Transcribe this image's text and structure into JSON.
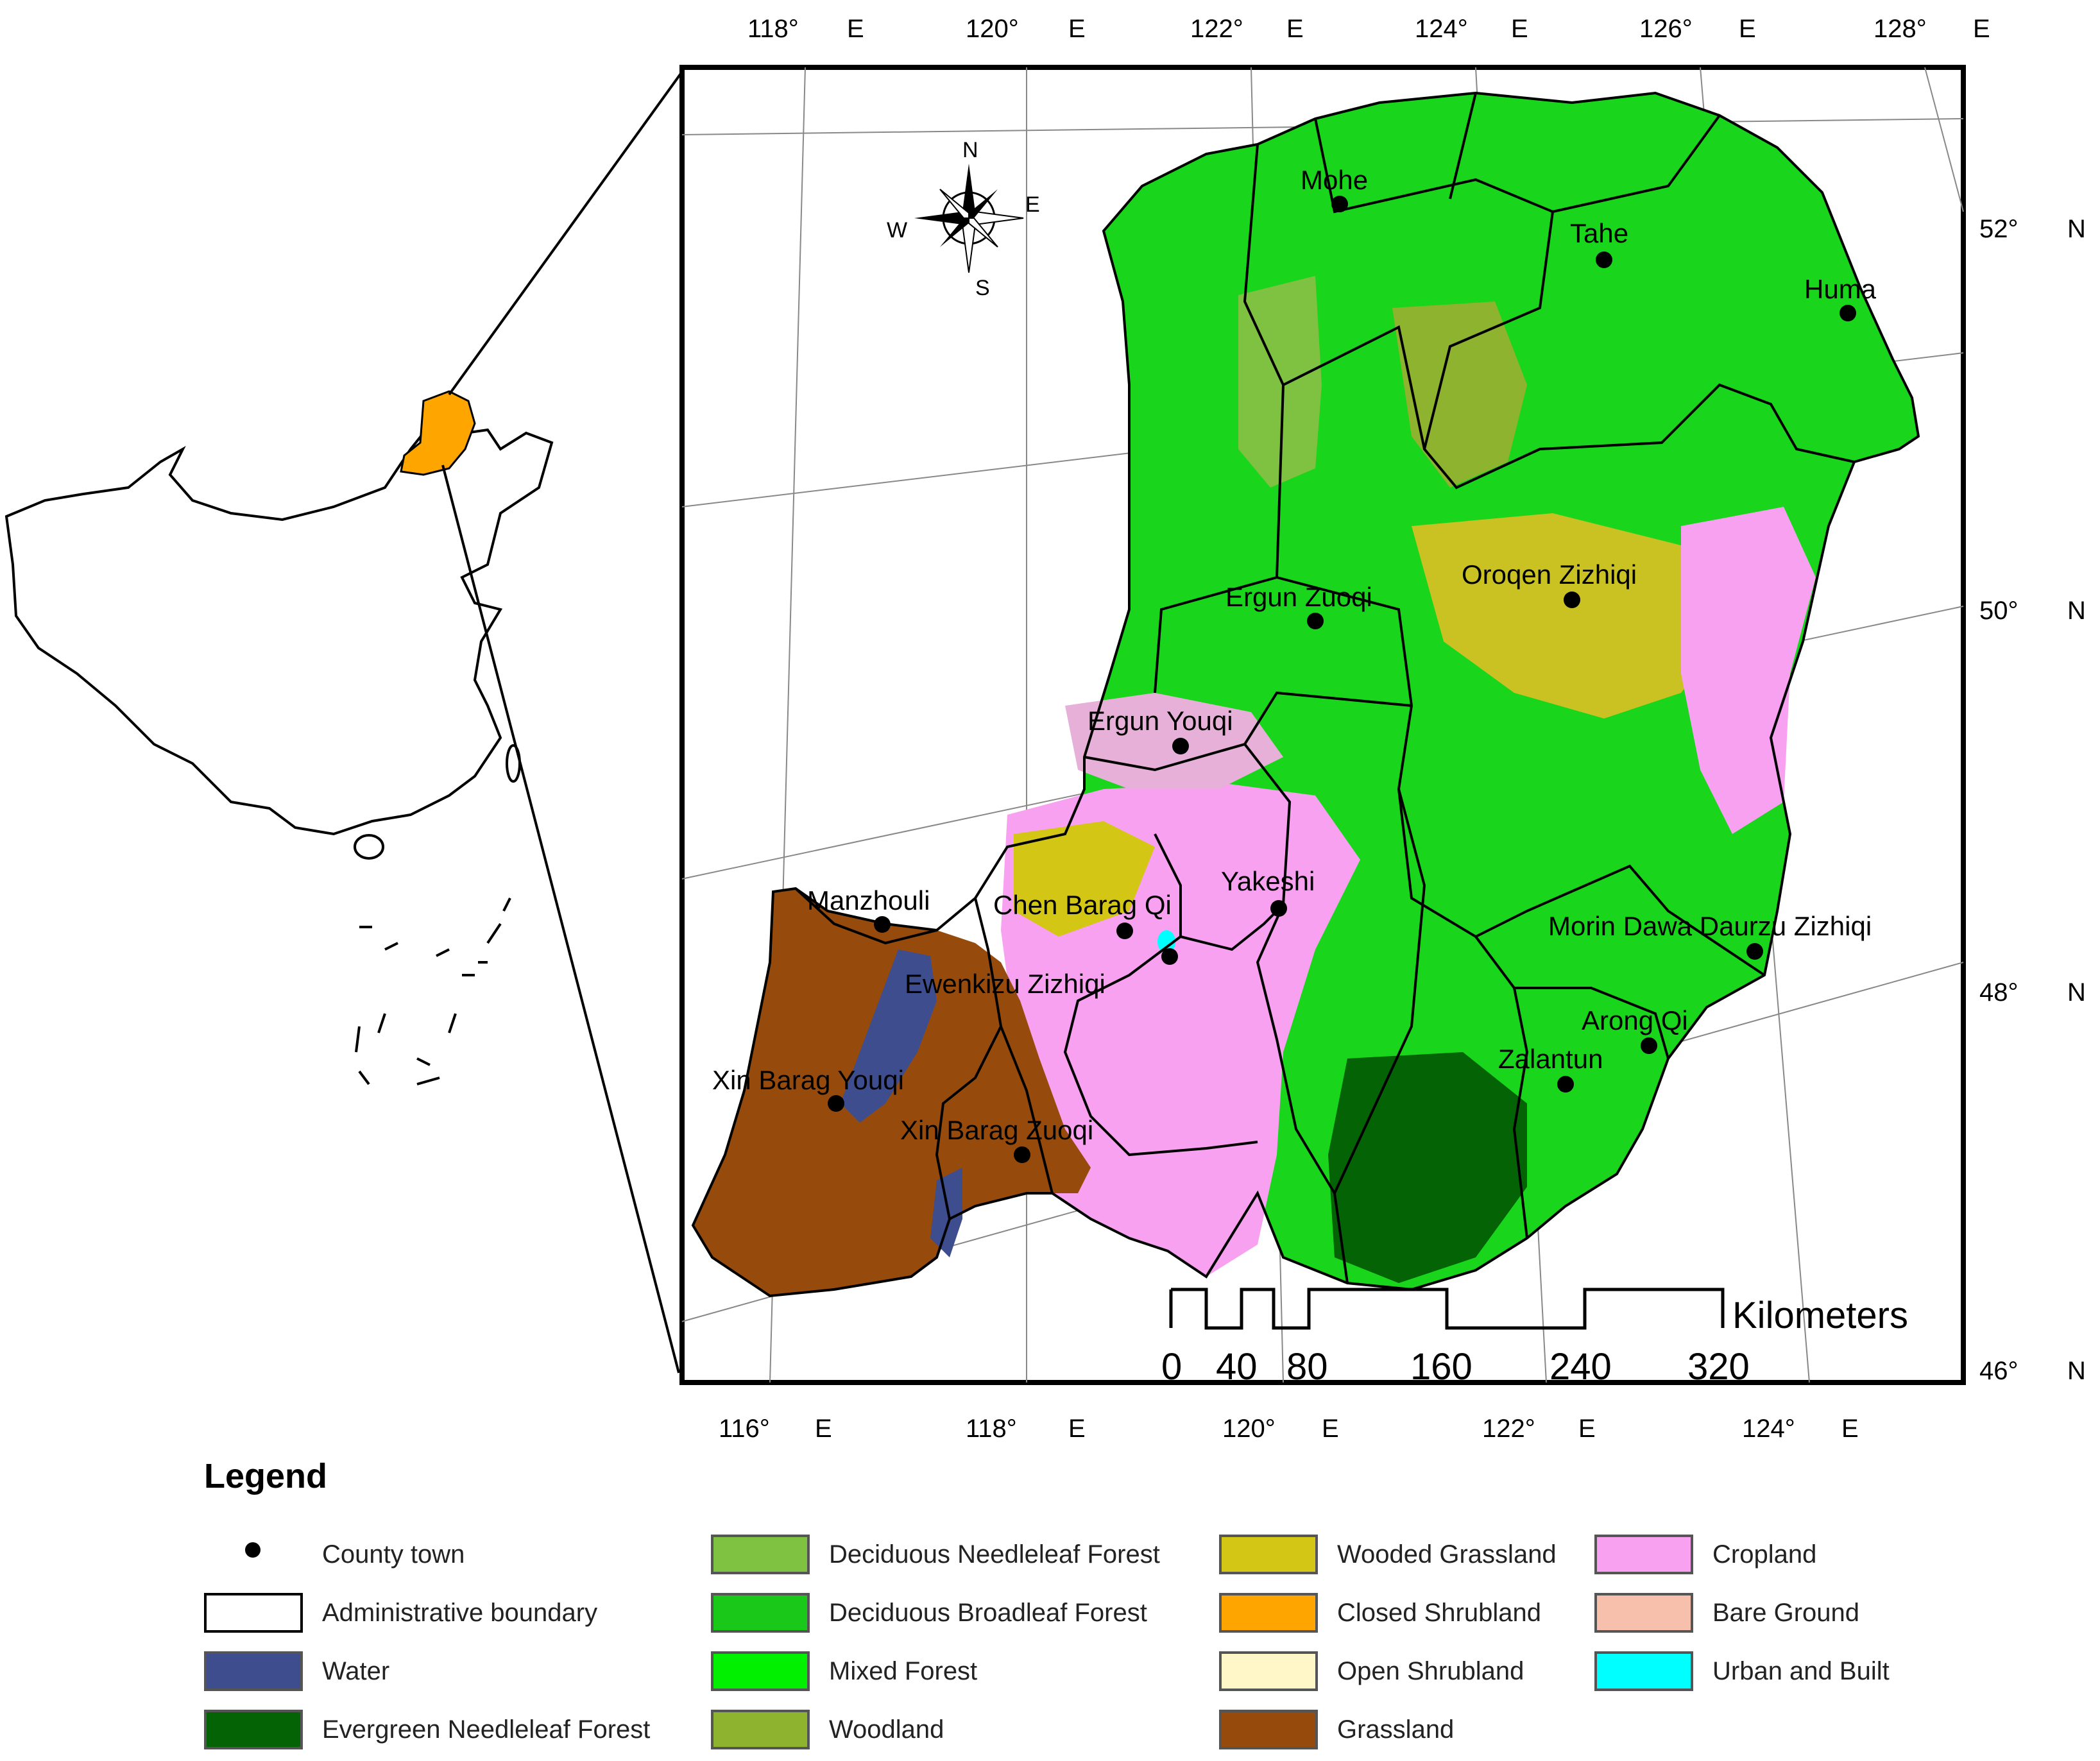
{
  "legend": {
    "title": "Legend",
    "items": [
      {
        "label": "County town",
        "kind": "point"
      },
      {
        "label": "Administrative boundary",
        "kind": "boundary"
      },
      {
        "label": "Water",
        "color": "#3d4d8e"
      },
      {
        "label": "Evergreen Needleleaf Forest",
        "color": "#046304"
      },
      {
        "label": "Deciduous Needleleaf Forest",
        "color": "#7fc241"
      },
      {
        "label": "Deciduous Broadleaf Forest",
        "color": "#19c819"
      },
      {
        "label": "Mixed Forest",
        "color": "#00f000"
      },
      {
        "label": "Woodland",
        "color": "#8db32f"
      },
      {
        "label": "Wooded Grassland",
        "color": "#d4c614"
      },
      {
        "label": "Closed Shrubland",
        "color": "#ffa500"
      },
      {
        "label": "Open Shrubland",
        "color": "#fff7c8"
      },
      {
        "label": "Grassland",
        "color": "#964b0c"
      },
      {
        "label": "Cropland",
        "color": "#f7a1f0"
      },
      {
        "label": "Bare Ground",
        "color": "#f6c0ac"
      },
      {
        "label": "Urban and Built",
        "color": "#00ffff"
      }
    ]
  },
  "map": {
    "towns": [
      "Mohe",
      "Tahe",
      "Huma",
      "Oroqen Zizhiqi",
      "Ergun Zuoqi",
      "Ergun Youqi",
      "Yakeshi",
      "Manzhouli",
      "Chen Barag Qi",
      "Ewenkizu Zizhiqi",
      "Morin Dawa Daurzu Zizhiqi",
      "Arong Qi",
      "Zalantun",
      "Xin Barag Youqi",
      "Xin Barag Zuoqi"
    ],
    "top_lon_labels": [
      "118°",
      "E",
      "120°",
      "E",
      "122°",
      "E",
      "124°",
      "E",
      "126°",
      "E",
      "128°",
      "E"
    ],
    "bottom_lon_labels": [
      "116°",
      "E",
      "118°",
      "E",
      "120°",
      "E",
      "122°",
      "E",
      "124°",
      "E"
    ],
    "lat_labels": [
      "52°",
      "N",
      "50°",
      "N",
      "48°",
      "N",
      "46°",
      "N"
    ],
    "compass": [
      "N",
      "E",
      "S",
      "W"
    ],
    "scale": {
      "unit": "Kilometers",
      "ticks": [
        "0",
        "40",
        "80",
        "160",
        "240",
        "320"
      ]
    }
  },
  "colors": {
    "highlight_region": "#ffa500",
    "map_frame": "#000000"
  }
}
